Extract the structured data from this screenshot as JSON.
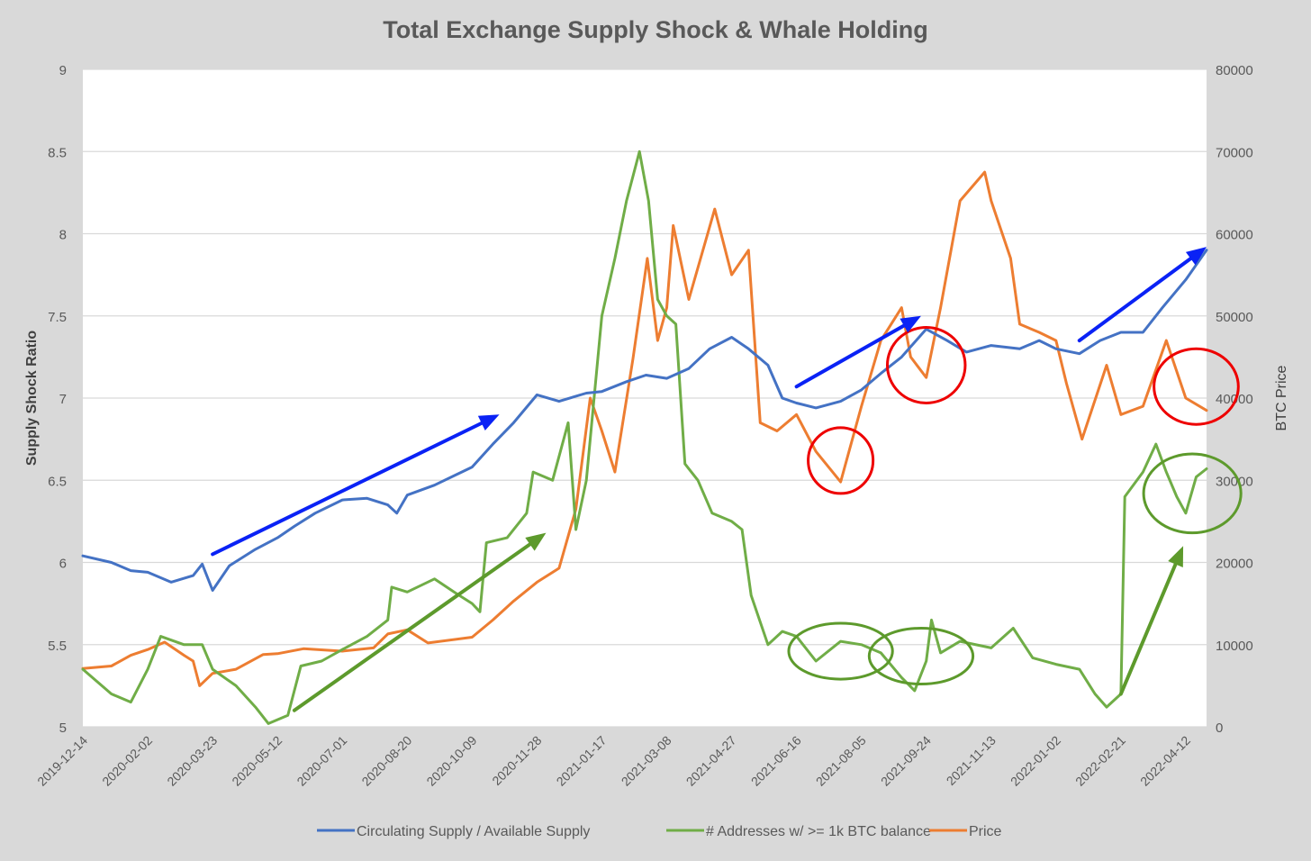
{
  "chart_data": {
    "type": "line",
    "title": "Total Exchange Supply Shock & Whale Holding",
    "y_left_label": "Supply Shock Ratio",
    "y_right_label": "BTC Price",
    "y_left_range": [
      5,
      9
    ],
    "y_right_range": [
      0,
      80000
    ],
    "y_left_ticks": [
      "5",
      "5.5",
      "6",
      "6.5",
      "7",
      "7.5",
      "8",
      "8.5",
      "9"
    ],
    "y_right_ticks": [
      "0",
      "10000",
      "20000",
      "30000",
      "40000",
      "50000",
      "60000",
      "70000",
      "80000"
    ],
    "x_ticks": [
      "2019-12-14",
      "2020-02-02",
      "2020-03-23",
      "2020-05-12",
      "2020-07-01",
      "2020-08-20",
      "2020-10-09",
      "2020-11-28",
      "2021-01-17",
      "2021-03-08",
      "2021-04-27",
      "2021-06-16",
      "2021-08-05",
      "2021-09-24",
      "2021-11-13",
      "2022-01-02",
      "2022-02-21",
      "2022-04-12"
    ],
    "x_range": [
      "2019-12-14",
      "2022-04-28"
    ],
    "grid": "horizontal",
    "legend_position": "bottom",
    "series": [
      {
        "name": "Circulating Supply / Available Supply",
        "axis": "left",
        "color": "#4472c4",
        "points": [
          [
            "2019-12-14",
            6.04
          ],
          [
            "2020-01-05",
            6.0
          ],
          [
            "2020-01-20",
            5.95
          ],
          [
            "2020-02-02",
            5.94
          ],
          [
            "2020-02-20",
            5.88
          ],
          [
            "2020-03-08",
            5.92
          ],
          [
            "2020-03-15",
            5.99
          ],
          [
            "2020-03-23",
            5.83
          ],
          [
            "2020-04-05",
            5.98
          ],
          [
            "2020-04-25",
            6.08
          ],
          [
            "2020-05-12",
            6.15
          ],
          [
            "2020-05-25",
            6.22
          ],
          [
            "2020-06-10",
            6.3
          ],
          [
            "2020-07-01",
            6.38
          ],
          [
            "2020-07-20",
            6.39
          ],
          [
            "2020-08-05",
            6.35
          ],
          [
            "2020-08-12",
            6.3
          ],
          [
            "2020-08-20",
            6.41
          ],
          [
            "2020-09-10",
            6.47
          ],
          [
            "2020-10-09",
            6.58
          ],
          [
            "2020-10-25",
            6.72
          ],
          [
            "2020-11-10",
            6.85
          ],
          [
            "2020-11-28",
            7.02
          ],
          [
            "2020-12-15",
            6.98
          ],
          [
            "2021-01-05",
            7.03
          ],
          [
            "2021-01-17",
            7.04
          ],
          [
            "2021-02-05",
            7.1
          ],
          [
            "2021-02-20",
            7.14
          ],
          [
            "2021-03-08",
            7.12
          ],
          [
            "2021-03-25",
            7.18
          ],
          [
            "2021-04-10",
            7.3
          ],
          [
            "2021-04-27",
            7.37
          ],
          [
            "2021-05-10",
            7.3
          ],
          [
            "2021-05-25",
            7.2
          ],
          [
            "2021-06-05",
            7.0
          ],
          [
            "2021-06-16",
            6.97
          ],
          [
            "2021-07-01",
            6.94
          ],
          [
            "2021-07-20",
            6.98
          ],
          [
            "2021-08-05",
            7.05
          ],
          [
            "2021-08-20",
            7.15
          ],
          [
            "2021-09-05",
            7.25
          ],
          [
            "2021-09-24",
            7.42
          ],
          [
            "2021-10-10",
            7.35
          ],
          [
            "2021-10-25",
            7.28
          ],
          [
            "2021-11-13",
            7.32
          ],
          [
            "2021-12-05",
            7.3
          ],
          [
            "2021-12-20",
            7.35
          ],
          [
            "2022-01-02",
            7.3
          ],
          [
            "2022-01-20",
            7.27
          ],
          [
            "2022-02-05",
            7.35
          ],
          [
            "2022-02-21",
            7.4
          ],
          [
            "2022-03-10",
            7.4
          ],
          [
            "2022-03-25",
            7.55
          ],
          [
            "2022-04-12",
            7.72
          ],
          [
            "2022-04-28",
            7.9
          ]
        ]
      },
      {
        "name": "# Addresses w/ >= 1k BTC balance",
        "axis": "left",
        "color": "#70ad47",
        "points": [
          [
            "2019-12-14",
            5.35
          ],
          [
            "2020-01-05",
            5.2
          ],
          [
            "2020-01-20",
            5.15
          ],
          [
            "2020-02-02",
            5.35
          ],
          [
            "2020-02-12",
            5.55
          ],
          [
            "2020-03-01",
            5.5
          ],
          [
            "2020-03-15",
            5.5
          ],
          [
            "2020-03-23",
            5.35
          ],
          [
            "2020-04-10",
            5.25
          ],
          [
            "2020-04-25",
            5.12
          ],
          [
            "2020-05-05",
            5.02
          ],
          [
            "2020-05-20",
            5.07
          ],
          [
            "2020-05-30",
            5.37
          ],
          [
            "2020-06-15",
            5.4
          ],
          [
            "2020-07-01",
            5.47
          ],
          [
            "2020-07-20",
            5.55
          ],
          [
            "2020-08-05",
            5.65
          ],
          [
            "2020-08-08",
            5.85
          ],
          [
            "2020-08-20",
            5.82
          ],
          [
            "2020-09-10",
            5.9
          ],
          [
            "2020-09-25",
            5.82
          ],
          [
            "2020-10-09",
            5.75
          ],
          [
            "2020-10-15",
            5.7
          ],
          [
            "2020-10-20",
            6.12
          ],
          [
            "2020-11-05",
            6.15
          ],
          [
            "2020-11-20",
            6.3
          ],
          [
            "2020-11-25",
            6.55
          ],
          [
            "2020-12-10",
            6.5
          ],
          [
            "2020-12-22",
            6.85
          ],
          [
            "2020-12-28",
            6.2
          ],
          [
            "2021-01-05",
            6.5
          ],
          [
            "2021-01-17",
            7.5
          ],
          [
            "2021-01-27",
            7.85
          ],
          [
            "2021-02-05",
            8.2
          ],
          [
            "2021-02-15",
            8.5
          ],
          [
            "2021-02-22",
            8.2
          ],
          [
            "2021-03-01",
            7.6
          ],
          [
            "2021-03-08",
            7.5
          ],
          [
            "2021-03-15",
            7.45
          ],
          [
            "2021-03-22",
            6.6
          ],
          [
            "2021-04-01",
            6.5
          ],
          [
            "2021-04-12",
            6.3
          ],
          [
            "2021-04-27",
            6.25
          ],
          [
            "2021-05-05",
            6.2
          ],
          [
            "2021-05-12",
            5.8
          ],
          [
            "2021-05-25",
            5.5
          ],
          [
            "2021-06-05",
            5.58
          ],
          [
            "2021-06-16",
            5.55
          ],
          [
            "2021-07-01",
            5.4
          ],
          [
            "2021-07-20",
            5.52
          ],
          [
            "2021-08-05",
            5.5
          ],
          [
            "2021-08-20",
            5.45
          ],
          [
            "2021-09-05",
            5.3
          ],
          [
            "2021-09-15",
            5.22
          ],
          [
            "2021-09-24",
            5.4
          ],
          [
            "2021-09-28",
            5.65
          ],
          [
            "2021-10-05",
            5.45
          ],
          [
            "2021-10-20",
            5.52
          ],
          [
            "2021-11-13",
            5.48
          ],
          [
            "2021-11-30",
            5.6
          ],
          [
            "2021-12-15",
            5.42
          ],
          [
            "2022-01-02",
            5.38
          ],
          [
            "2022-01-20",
            5.35
          ],
          [
            "2022-02-01",
            5.2
          ],
          [
            "2022-02-10",
            5.12
          ],
          [
            "2022-02-21",
            5.2
          ],
          [
            "2022-02-24",
            6.4
          ],
          [
            "2022-03-10",
            6.55
          ],
          [
            "2022-03-20",
            6.72
          ],
          [
            "2022-03-28",
            6.55
          ],
          [
            "2022-04-05",
            6.4
          ],
          [
            "2022-04-12",
            6.3
          ],
          [
            "2022-04-20",
            6.52
          ],
          [
            "2022-04-28",
            6.57
          ]
        ]
      },
      {
        "name": "Price",
        "axis": "right",
        "color": "#ed7d31",
        "points": [
          [
            "2019-12-14",
            7100
          ],
          [
            "2020-01-05",
            7400
          ],
          [
            "2020-01-20",
            8700
          ],
          [
            "2020-02-02",
            9400
          ],
          [
            "2020-02-15",
            10300
          ],
          [
            "2020-03-01",
            8700
          ],
          [
            "2020-03-08",
            8000
          ],
          [
            "2020-03-13",
            5000
          ],
          [
            "2020-03-23",
            6500
          ],
          [
            "2020-04-10",
            7000
          ],
          [
            "2020-05-01",
            8800
          ],
          [
            "2020-05-12",
            8900
          ],
          [
            "2020-06-01",
            9500
          ],
          [
            "2020-07-01",
            9200
          ],
          [
            "2020-07-25",
            9600
          ],
          [
            "2020-08-05",
            11300
          ],
          [
            "2020-08-20",
            11800
          ],
          [
            "2020-09-05",
            10200
          ],
          [
            "2020-10-09",
            10900
          ],
          [
            "2020-10-25",
            13000
          ],
          [
            "2020-11-10",
            15300
          ],
          [
            "2020-11-28",
            17600
          ],
          [
            "2020-12-15",
            19300
          ],
          [
            "2020-12-28",
            26500
          ],
          [
            "2021-01-08",
            40000
          ],
          [
            "2021-01-17",
            36000
          ],
          [
            "2021-01-27",
            31000
          ],
          [
            "2021-02-10",
            44800
          ],
          [
            "2021-02-21",
            57000
          ],
          [
            "2021-03-01",
            47000
          ],
          [
            "2021-03-08",
            51000
          ],
          [
            "2021-03-13",
            61000
          ],
          [
            "2021-03-25",
            52000
          ],
          [
            "2021-04-14",
            63000
          ],
          [
            "2021-04-27",
            55000
          ],
          [
            "2021-05-10",
            58000
          ],
          [
            "2021-05-19",
            37000
          ],
          [
            "2021-06-01",
            36000
          ],
          [
            "2021-06-16",
            38000
          ],
          [
            "2021-07-01",
            33500
          ],
          [
            "2021-07-20",
            29800
          ],
          [
            "2021-08-05",
            39000
          ],
          [
            "2021-08-20",
            47000
          ],
          [
            "2021-09-05",
            51000
          ],
          [
            "2021-09-12",
            45000
          ],
          [
            "2021-09-24",
            42500
          ],
          [
            "2021-10-05",
            51000
          ],
          [
            "2021-10-20",
            64000
          ],
          [
            "2021-11-08",
            67500
          ],
          [
            "2021-11-13",
            64000
          ],
          [
            "2021-11-28",
            57000
          ],
          [
            "2021-12-05",
            49000
          ],
          [
            "2021-12-20",
            48000
          ],
          [
            "2022-01-02",
            47000
          ],
          [
            "2022-01-10",
            41800
          ],
          [
            "2022-01-22",
            35000
          ],
          [
            "2022-02-10",
            44000
          ],
          [
            "2022-02-21",
            38000
          ],
          [
            "2022-03-10",
            39000
          ],
          [
            "2022-03-28",
            47000
          ],
          [
            "2022-04-12",
            40000
          ],
          [
            "2022-04-28",
            38500
          ]
        ]
      }
    ]
  },
  "legend": {
    "items": [
      {
        "label": "Circulating Supply / Available Supply",
        "color": "#4472c4"
      },
      {
        "label": "# Addresses w/ >= 1k BTC balance",
        "color": "#70ad47"
      },
      {
        "label": "Price",
        "color": "#ed7d31"
      }
    ]
  },
  "annotations": {
    "arrows": [
      {
        "color": "#0a22f5",
        "from": [
          "2020-03-23",
          6.05
        ],
        "to": [
          "2020-10-30",
          6.9
        ]
      },
      {
        "color": "#0a22f5",
        "from": [
          "2021-06-16",
          7.07
        ],
        "to": [
          "2021-09-20",
          7.5
        ]
      },
      {
        "color": "#0a22f5",
        "from": [
          "2022-01-20",
          7.35
        ],
        "to": [
          "2022-04-28",
          7.92
        ]
      },
      {
        "color": "#5d9a2c",
        "from": [
          "2020-05-25",
          5.1
        ],
        "to": [
          "2020-12-05",
          6.18
        ]
      },
      {
        "color": "#5d9a2c",
        "from": [
          "2022-02-21",
          5.2
        ],
        "to": [
          "2022-04-10",
          6.1
        ]
      }
    ],
    "circles": [
      {
        "color": "#ee0000",
        "center": [
          "2021-07-20",
          6.62
        ],
        "r_days": 10,
        "r_units": 0.2
      },
      {
        "color": "#ee0000",
        "center": [
          "2021-09-24",
          7.2
        ],
        "r_days": 12,
        "r_units": 0.23
      },
      {
        "color": "#ee0000",
        "center": [
          "2022-04-20",
          7.07
        ],
        "r_days": 13,
        "r_units": 0.23
      },
      {
        "color": "#5d9a2c",
        "center": [
          "2021-07-20",
          5.46
        ],
        "r_days": 16,
        "r_units": 0.17
      },
      {
        "color": "#5d9a2c",
        "center": [
          "2021-09-20",
          5.43
        ],
        "r_days": 16,
        "r_units": 0.17
      },
      {
        "color": "#5d9a2c",
        "center": [
          "2022-04-17",
          6.42
        ],
        "r_days": 15,
        "r_units": 0.24
      }
    ]
  }
}
